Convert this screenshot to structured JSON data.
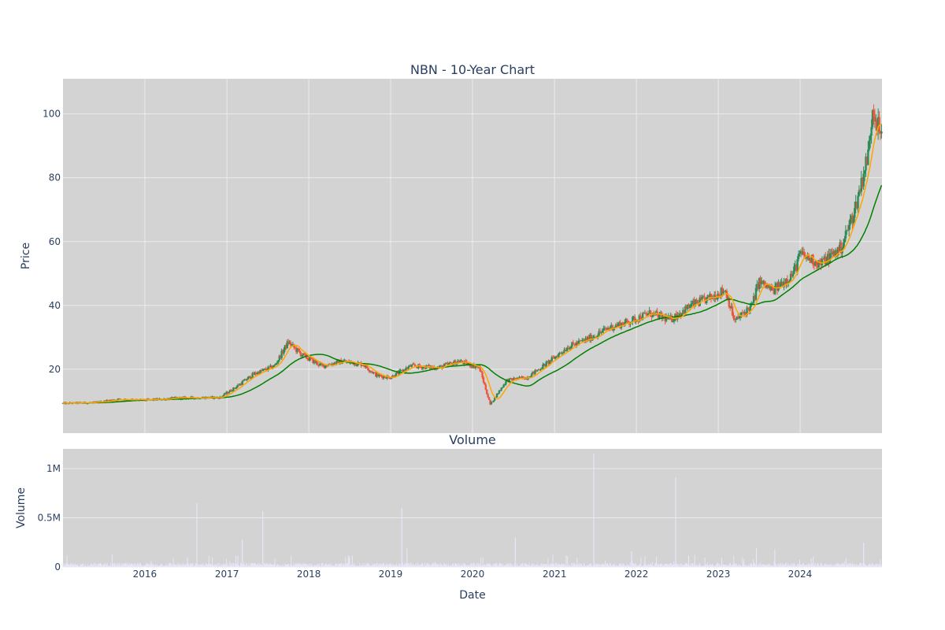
{
  "chart_data": [
    {
      "type": "candlestick",
      "title": "NBN - 10-Year Chart",
      "ylabel": "Price",
      "xlabel": "",
      "x_range": [
        "2015-01-01",
        "2024-12-31"
      ],
      "ylim": [
        0,
        111
      ],
      "y_ticks": [
        20,
        40,
        60,
        80,
        100
      ],
      "grid": true,
      "legend": "none",
      "colors": {
        "background": "#d3d3d3",
        "grid": "#ebebeb",
        "up": "#2e8b57",
        "down": "#ef553b",
        "ma_short": "#ffa500",
        "ma_long": "#008000"
      },
      "price_anchors": [
        [
          "2015-01-01",
          9.3
        ],
        [
          "2015-06-01",
          9.6
        ],
        [
          "2015-09-01",
          10.6
        ],
        [
          "2016-01-01",
          10.3
        ],
        [
          "2016-06-01",
          11.0
        ],
        [
          "2016-12-01",
          11.2
        ],
        [
          "2017-02-01",
          14.0
        ],
        [
          "2017-05-01",
          18.5
        ],
        [
          "2017-08-01",
          21.0
        ],
        [
          "2017-10-01",
          28.5
        ],
        [
          "2017-12-01",
          24.5
        ],
        [
          "2018-03-01",
          21.0
        ],
        [
          "2018-06-01",
          22.5
        ],
        [
          "2018-09-01",
          21.5
        ],
        [
          "2018-11-01",
          18.0
        ],
        [
          "2019-01-01",
          17.5
        ],
        [
          "2019-04-01",
          21.0
        ],
        [
          "2019-08-01",
          20.5
        ],
        [
          "2019-11-01",
          22.5
        ],
        [
          "2020-02-01",
          20.5
        ],
        [
          "2020-03-20",
          9.0
        ],
        [
          "2020-06-01",
          16.5
        ],
        [
          "2020-09-01",
          17.5
        ],
        [
          "2020-12-01",
          22.0
        ],
        [
          "2021-03-01",
          27.0
        ],
        [
          "2021-06-01",
          29.5
        ],
        [
          "2021-09-01",
          33.0
        ],
        [
          "2021-12-01",
          35.0
        ],
        [
          "2022-03-01",
          37.5
        ],
        [
          "2022-06-01",
          35.5
        ],
        [
          "2022-09-01",
          40.0
        ],
        [
          "2022-12-01",
          42.5
        ],
        [
          "2023-02-01",
          45.0
        ],
        [
          "2023-03-15",
          35.0
        ],
        [
          "2023-06-01",
          40.0
        ],
        [
          "2023-07-01",
          47.5
        ],
        [
          "2023-09-01",
          44.5
        ],
        [
          "2023-12-01",
          50.0
        ],
        [
          "2024-01-01",
          56.0
        ],
        [
          "2024-04-01",
          53.0
        ],
        [
          "2024-07-01",
          58.0
        ],
        [
          "2024-09-01",
          70.0
        ],
        [
          "2024-11-01",
          88.0
        ],
        [
          "2024-11-20",
          103.0
        ],
        [
          "2024-12-31",
          91.0
        ]
      ]
    },
    {
      "type": "bar",
      "title": "Volume",
      "xlabel": "Date",
      "ylabel": "Volume",
      "x_range": [
        "2015-01-01",
        "2024-12-31"
      ],
      "ylim": [
        0,
        1200000
      ],
      "y_ticks": [
        [
          0,
          "0"
        ],
        [
          500000,
          "0.5M"
        ],
        [
          1000000,
          "1M"
        ]
      ],
      "x_ticks": [
        "2016",
        "2017",
        "2018",
        "2019",
        "2020",
        "2021",
        "2022",
        "2023",
        "2024"
      ],
      "grid": true,
      "colors": {
        "background": "#d3d3d3",
        "bar": "#e8e6f8"
      },
      "baseline": 25000,
      "spikes": [
        [
          "2016-08-20",
          650000
        ],
        [
          "2017-03-10",
          280000
        ],
        [
          "2017-06-10",
          570000
        ],
        [
          "2019-02-20",
          600000
        ],
        [
          "2019-03-15",
          190000
        ],
        [
          "2020-07-10",
          300000
        ],
        [
          "2021-06-25",
          1150000
        ],
        [
          "2021-12-10",
          160000
        ],
        [
          "2022-06-25",
          910000
        ],
        [
          "2023-06-20",
          190000
        ],
        [
          "2023-09-10",
          180000
        ],
        [
          "2024-10-10",
          250000
        ]
      ]
    }
  ]
}
